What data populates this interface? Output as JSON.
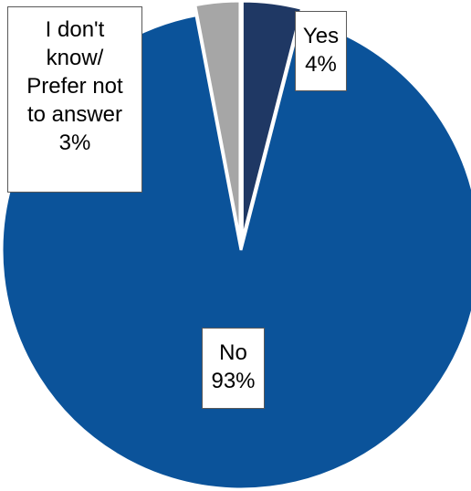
{
  "chart_data": {
    "type": "pie",
    "title": "",
    "slices": [
      {
        "label": "Yes",
        "value": 4,
        "display": "4%",
        "color": "#1f3864",
        "exploded": true
      },
      {
        "label": "No",
        "value": 93,
        "display": "93%",
        "color": "#0b539a",
        "exploded": false
      },
      {
        "label": "I don't know/ Prefer not to answer",
        "value": 3,
        "display": "3%",
        "color": "#a6a6a6",
        "exploded": true
      }
    ],
    "start_angle": "12 o'clock",
    "direction": "clockwise",
    "legend": "none"
  },
  "labels": {
    "yes": {
      "line1": "Yes",
      "line2": "4%"
    },
    "no": {
      "line1": "No",
      "line2": "93%"
    },
    "dk": {
      "line1": "I don't",
      "line2": "know/",
      "line3": "Prefer not",
      "line4": "to answer",
      "line5": "3%"
    }
  }
}
